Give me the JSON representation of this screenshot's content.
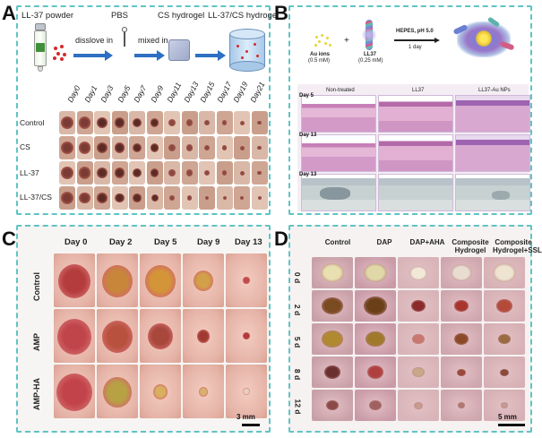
{
  "panelA": {
    "letter": "A",
    "steps": [
      "LL-37 powder",
      "PBS",
      "CS hydrogel",
      "LL-37/CS hydrogel"
    ],
    "arrows": [
      "disslove in",
      "mixed in"
    ],
    "days": [
      "Day0",
      "Day1",
      "Day3",
      "Day5",
      "Day7",
      "Day9",
      "Day11",
      "Day13",
      "Day15",
      "Day17",
      "Day19",
      "Day21"
    ],
    "rows": [
      "Control",
      "CS",
      "LL-37",
      "LL-37/CS"
    ]
  },
  "panelB": {
    "letter": "B",
    "reagent1": "Au ions",
    "reagent1_conc": "(0.5 mM)",
    "reagent2": "LL37",
    "reagent2_conc": "(0.25 mM)",
    "condition": "HEPES, pH 5.0",
    "time": "1 day",
    "plus": "+",
    "columns": [
      "Non-treated",
      "LL37",
      "LL37-Au NPs"
    ],
    "days": [
      "Day 5",
      "Day 13",
      "Day 13"
    ]
  },
  "panelC": {
    "letter": "C",
    "columns": [
      "Day 0",
      "Day 2",
      "Day 5",
      "Day 9",
      "Day 13"
    ],
    "rows": [
      "Control",
      "AMP",
      "AMP-HA"
    ],
    "scale": "3 mm"
  },
  "panelD": {
    "letter": "D",
    "columns": [
      {
        "l1": "Control",
        "l2": ""
      },
      {
        "l1": "DAP",
        "l2": ""
      },
      {
        "l1": "DAP+AHA",
        "l2": ""
      },
      {
        "l1": "Composite",
        "l2": "Hydrogel"
      },
      {
        "l1": "Composite",
        "l2": "Hydrogel+SSL"
      }
    ],
    "rows": [
      "0 d",
      "2 d",
      "5 d",
      "8 d",
      "12 d"
    ],
    "scale": "5 mm"
  }
}
